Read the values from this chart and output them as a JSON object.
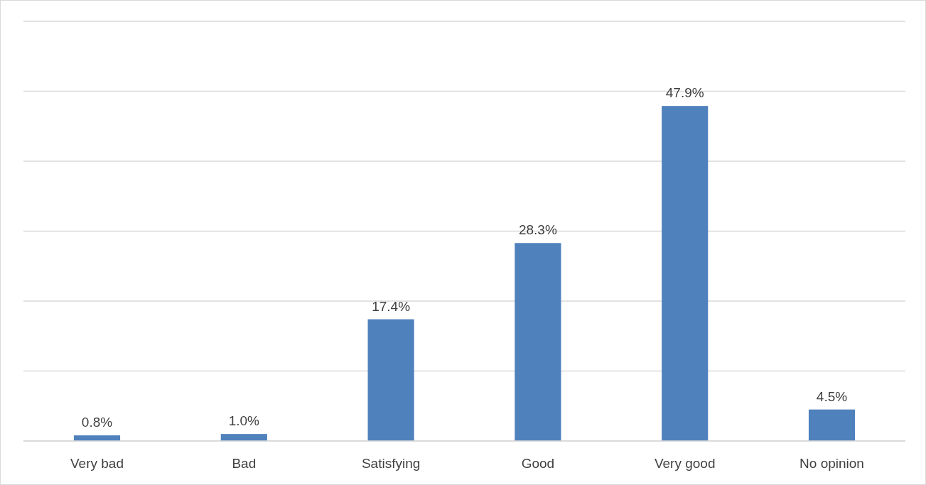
{
  "chart_data": {
    "type": "bar",
    "categories": [
      "Very bad",
      "Bad",
      "Satisfying",
      "Good",
      "Very good",
      "No opinion"
    ],
    "values": [
      0.8,
      1.0,
      17.4,
      28.3,
      47.9,
      4.5
    ],
    "value_labels": [
      "0.8%",
      "1.0%",
      "17.4%",
      "28.3%",
      "47.9%",
      "4.5%"
    ],
    "color": "#4f81bd",
    "ylim": [
      0,
      60
    ],
    "yticks": [
      {
        "value": 0,
        "label": null
      },
      {
        "value": 10,
        "label": null
      },
      {
        "value": 20,
        "label": null
      },
      {
        "value": 30,
        "label": null
      },
      {
        "value": 40,
        "label": null
      },
      {
        "value": 50,
        "label": null
      },
      {
        "value": 60,
        "label": null
      }
    ],
    "grid": "y",
    "tick_labels": "x"
  }
}
